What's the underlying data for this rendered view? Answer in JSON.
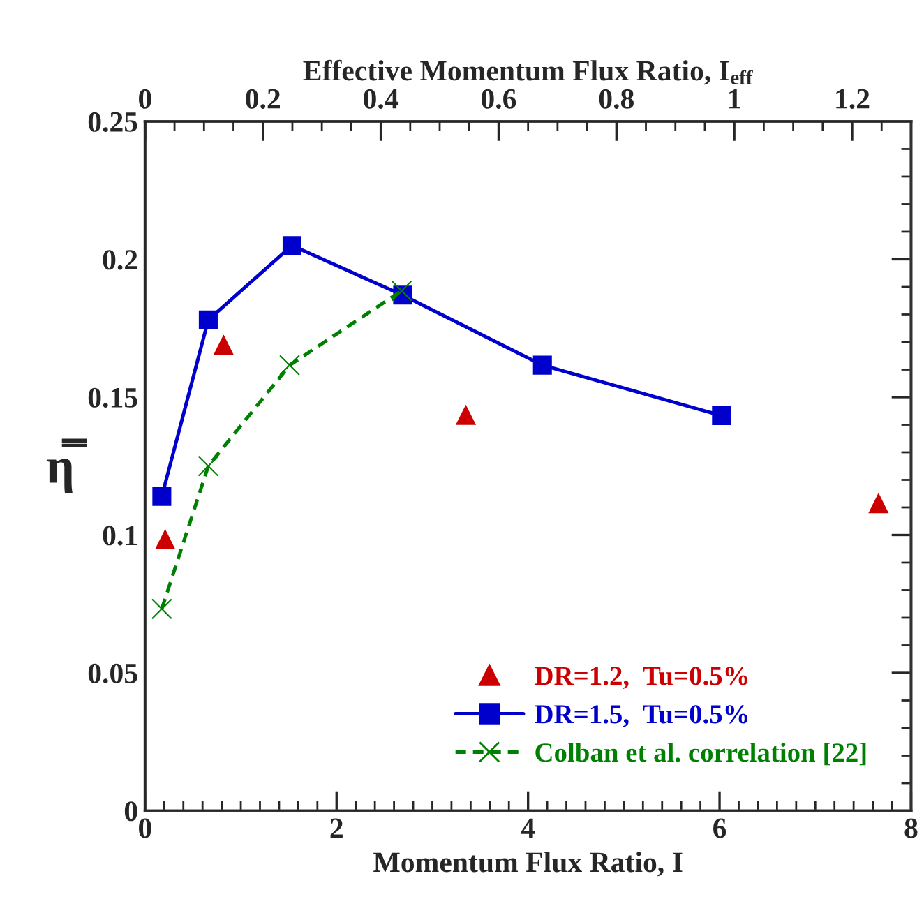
{
  "chart_data": {
    "type": "scatter",
    "xlabel": "Momentum Flux Ratio, I",
    "ylabel": "η̿",
    "x2label": "Effective Momentum Flux Ratio, I$_{eff}$",
    "xlim": [
      0,
      8
    ],
    "xticks": [
      0,
      {
        "value": 0.2,
        "label": null
      },
      {
        "value": 0.4,
        "label": null
      },
      {
        "value": 0.6,
        "label": null
      },
      {
        "value": 0.8,
        "label": null
      },
      {
        "value": 1,
        "label": null
      },
      {
        "value": 1.2,
        "label": null
      },
      {
        "value": 1.4,
        "label": null
      },
      {
        "value": 1.6,
        "label": null
      },
      {
        "value": 1.8,
        "label": null
      },
      2,
      {
        "value": 2.2,
        "label": null
      },
      {
        "value": 2.4,
        "label": null
      },
      {
        "value": 2.6,
        "label": null
      },
      {
        "value": 2.8,
        "label": null
      },
      {
        "value": 3,
        "label": null
      },
      {
        "value": 3.2,
        "label": null
      },
      {
        "value": 3.4,
        "label": null
      },
      {
        "value": 3.6,
        "label": null
      },
      {
        "value": 3.8,
        "label": null
      },
      4,
      {
        "value": 4.2,
        "label": null
      },
      {
        "value": 4.4,
        "label": null
      },
      {
        "value": 4.6,
        "label": null
      },
      {
        "value": 4.8,
        "label": null
      },
      {
        "value": 5,
        "label": null
      },
      {
        "value": 5.2,
        "label": null
      },
      {
        "value": 5.4,
        "label": null
      },
      {
        "value": 5.6,
        "label": null
      },
      {
        "value": 5.8,
        "label": null
      },
      6,
      {
        "value": 6.2,
        "label": null
      },
      {
        "value": 6.4,
        "label": null
      },
      {
        "value": 6.6,
        "label": null
      },
      {
        "value": 6.8,
        "label": null
      },
      {
        "value": 7,
        "label": null
      },
      {
        "value": 7.2,
        "label": null
      },
      {
        "value": 7.4,
        "label": null
      },
      {
        "value": 7.6,
        "label": null
      },
      {
        "value": 7.8,
        "label": null
      },
      8
    ],
    "x2lim": [
      0,
      1.3
    ],
    "x2ticks": [
      0,
      {
        "value": 0.05,
        "label": null
      },
      {
        "value": 0.1,
        "label": null
      },
      {
        "value": 0.15,
        "label": null
      },
      0.2,
      {
        "value": 0.25,
        "label": null
      },
      {
        "value": 0.3,
        "label": null
      },
      {
        "value": 0.35,
        "label": null
      },
      0.4,
      {
        "value": 0.45,
        "label": null
      },
      {
        "value": 0.5,
        "label": null
      },
      {
        "value": 0.55,
        "label": null
      },
      0.6,
      {
        "value": 0.65,
        "label": null
      },
      {
        "value": 0.7,
        "label": null
      },
      {
        "value": 0.75,
        "label": null
      },
      0.8,
      {
        "value": 0.85,
        "label": null
      },
      {
        "value": 0.9,
        "label": null
      },
      {
        "value": 0.95,
        "label": null
      },
      1,
      {
        "value": 1.05,
        "label": null
      },
      {
        "value": 1.1,
        "label": null
      },
      {
        "value": 1.15,
        "label": null
      },
      1.2,
      {
        "value": 1.25,
        "label": null
      }
    ],
    "ylim": [
      0,
      0.25
    ],
    "yticks": [
      0,
      {
        "value": 0.01,
        "label": null
      },
      {
        "value": 0.02,
        "label": null
      },
      {
        "value": 0.03,
        "label": null
      },
      {
        "value": 0.04,
        "label": null
      },
      0.05,
      {
        "value": 0.06,
        "label": null
      },
      {
        "value": 0.07,
        "label": null
      },
      {
        "value": 0.08,
        "label": null
      },
      {
        "value": 0.09,
        "label": null
      },
      0.1,
      {
        "value": 0.11,
        "label": null
      },
      {
        "value": 0.12,
        "label": null
      },
      {
        "value": 0.13,
        "label": null
      },
      {
        "value": 0.14,
        "label": null
      },
      0.15,
      {
        "value": 0.16,
        "label": null
      },
      {
        "value": 0.17,
        "label": null
      },
      {
        "value": 0.18,
        "label": null
      },
      {
        "value": 0.19,
        "label": null
      },
      0.2,
      {
        "value": 0.21,
        "label": null
      },
      {
        "value": 0.22,
        "label": null
      },
      {
        "value": 0.23,
        "label": null
      },
      {
        "value": 0.24,
        "label": null
      },
      0.25
    ],
    "legend": "bottom right",
    "grid": false,
    "series": [
      {
        "name": "DR=1.2,  Tu=0.5%",
        "marker": "triangle",
        "color": "#cc0000",
        "x": [
          0.21,
          0.82,
          3.35,
          7.66
        ],
        "values": [
          0.0985,
          0.169,
          0.1436,
          0.1116
        ]
      },
      {
        "name": "DR=1.5,  Tu=0.5%",
        "type": "line",
        "marker": "square",
        "line_style": "solid",
        "color": "#0000cc",
        "x": [
          0.175,
          0.66,
          1.535,
          2.69,
          4.15,
          6.02
        ],
        "values": [
          0.114,
          0.178,
          0.205,
          0.187,
          0.1616,
          0.1433
        ]
      },
      {
        "name": "Colban et al. correlation [22]",
        "type": "line",
        "marker": "cross",
        "line_style": "dashed",
        "color": "#008000",
        "x": [
          0.175,
          0.66,
          1.51,
          2.68
        ],
        "values": [
          0.0732,
          0.125,
          0.1616,
          0.1886
        ]
      }
    ]
  }
}
